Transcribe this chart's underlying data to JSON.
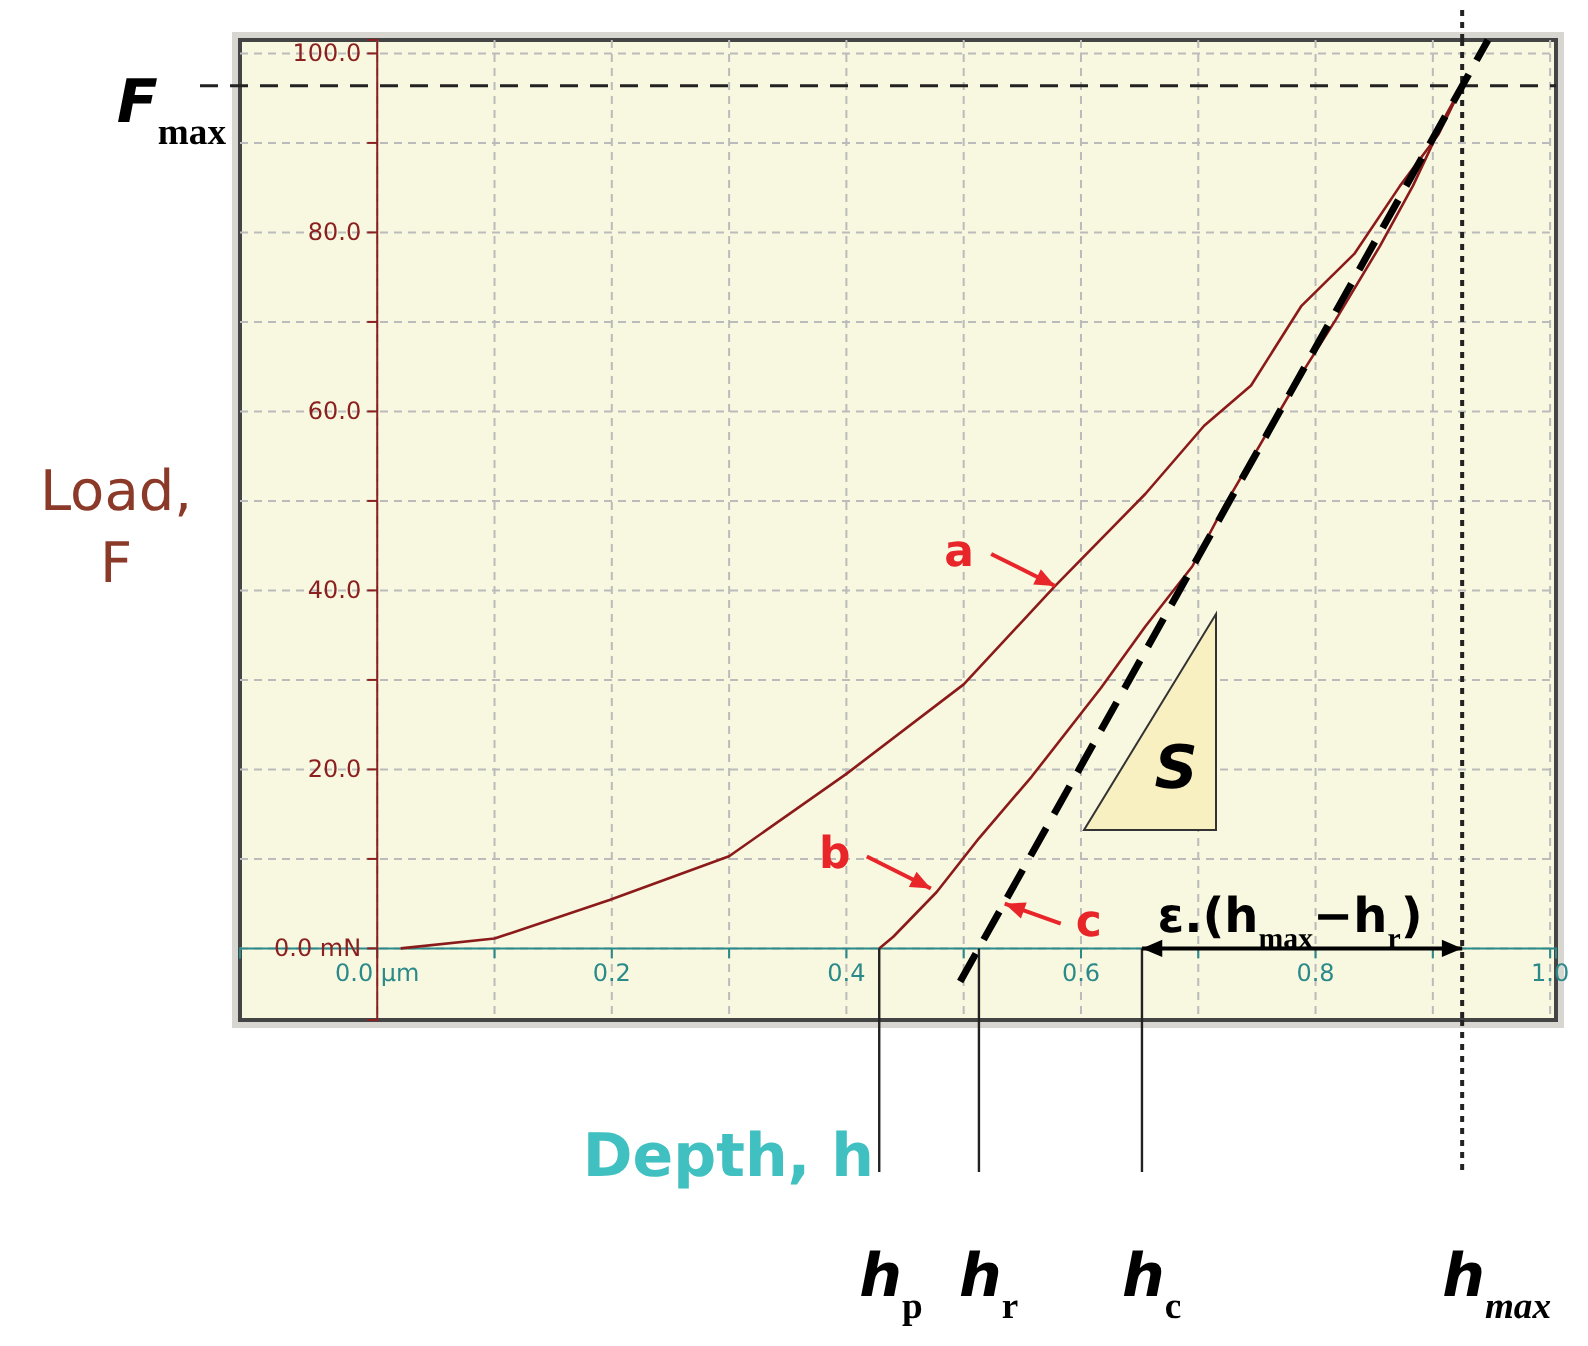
{
  "chart_data": {
    "type": "line",
    "xlabel": "Depth, h",
    "ylabel": "Load, F",
    "xlim": [
      -0.117,
      1.005
    ],
    "ylim": [
      -8,
      101.5
    ],
    "xticks": [
      {
        "value": 0,
        "label": "0.0 µm"
      },
      {
        "value": 0.1,
        "label": null
      },
      0.2,
      {
        "value": 0.3,
        "label": null
      },
      0.4,
      {
        "value": 0.5,
        "label": null
      },
      0.6,
      {
        "value": 0.7,
        "label": null
      },
      0.8,
      {
        "value": 0.9,
        "label": null
      },
      {
        "value": 1.0,
        "label": "1.0"
      }
    ],
    "yticks": [
      {
        "value": 0,
        "label": "0.0 mN"
      },
      {
        "value": 10,
        "label": null
      },
      {
        "value": 20,
        "label": "20.0"
      },
      {
        "value": 30,
        "label": null
      },
      {
        "value": 40,
        "label": "40.0"
      },
      {
        "value": 50,
        "label": null
      },
      {
        "value": 60,
        "label": "60.0"
      },
      {
        "value": 70,
        "label": null
      },
      {
        "value": 80,
        "label": "80.0"
      },
      {
        "value": 90,
        "label": null
      },
      {
        "value": 100,
        "label": "100.0"
      }
    ],
    "grid": true,
    "marker": "none",
    "series": [
      {
        "color": "#8b1a1a",
        "line_style": "solid",
        "x": [
          0.02,
          0.1,
          0.198,
          0.3,
          0.4,
          0.5,
          0.578,
          0.655,
          0.705,
          0.745,
          0.788,
          0.833,
          0.872,
          0.905,
          0.925
        ],
        "values": [
          0,
          1.1,
          5.4,
          10.3,
          19.5,
          29.5,
          40.5,
          50.8,
          58.4,
          62.9,
          71.8,
          77.6,
          85.2,
          91,
          96.4
        ]
      },
      {
        "color": "#8b1a1a",
        "line_style": "solid",
        "x": [
          0.925,
          0.912,
          0.883,
          0.855,
          0.817,
          0.788,
          0.755,
          0.722,
          0.695,
          0.655,
          0.617,
          0.558,
          0.513,
          0.477,
          0.44,
          0.428
        ],
        "values": [
          96.4,
          93.3,
          85.2,
          78.5,
          70.2,
          64.2,
          56.8,
          49.4,
          42.7,
          36,
          29.1,
          19.2,
          12.3,
          6.3,
          1.3,
          0
        ]
      },
      {
        "color": "#000000",
        "line_style": "dashed",
        "x": [
          0.497,
          0.947
        ],
        "values": [
          -3.7,
          101.5
        ]
      }
    ],
    "ref_lines": [
      {
        "axis": "y",
        "value": 96.4,
        "label": "F$_{max}$",
        "line_style": "dashed"
      },
      {
        "axis": "x",
        "value": 0.652,
        "label": "h$_{c}$",
        "line_style": "solid"
      },
      {
        "axis": "x",
        "value": 0.925,
        "label": "h$_{max}$",
        "line_style": "dotted"
      }
    ],
    "annotations": [
      {
        "text": "a",
        "x": 0.578,
        "y": 40.5
      },
      {
        "text": "b",
        "x": 0.472,
        "y": 6.7
      },
      {
        "text": "c",
        "x": 0.535,
        "y": 5
      },
      "S",
      {
        "text": "ε.(h$_{max}$−h$_{r}$)",
        "x": 0.925,
        "y": 0
      },
      {
        "text": "h$_{p}$",
        "x": 0.428,
        "y": 0
      },
      {
        "text": "h$_{r}$",
        "x": 0.513,
        "y": 0
      }
    ]
  }
}
